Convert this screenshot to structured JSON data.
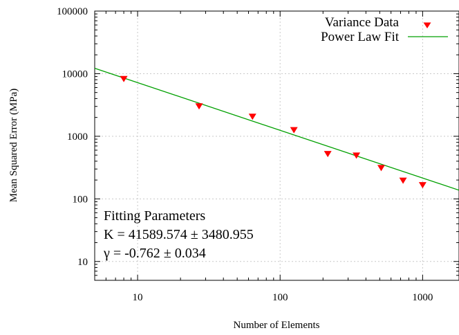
{
  "chart_data": {
    "type": "scatter",
    "x_scale": "log",
    "y_scale": "log",
    "xlim": [
      5,
      1800
    ],
    "ylim": [
      5,
      100000
    ],
    "xlabel": "Number of Elements",
    "ylabel": "Mean Squared Error (MPa)",
    "x_ticks": [
      {
        "value": 10,
        "label": "10"
      },
      {
        "value": 100,
        "label": "100"
      },
      {
        "value": 1000,
        "label": "1000"
      }
    ],
    "y_ticks": [
      {
        "value": 10,
        "label": "10"
      },
      {
        "value": 100,
        "label": "100"
      },
      {
        "value": 1000,
        "label": "1000"
      },
      {
        "value": 10000,
        "label": "10000"
      },
      {
        "value": 100000,
        "label": "100000"
      }
    ],
    "grid": true,
    "legend_position": "top-right",
    "series": [
      {
        "name": "Variance Data",
        "kind": "points",
        "marker": "triangle-down",
        "color": "#ff0000",
        "x": [
          8,
          27,
          64,
          125,
          216,
          343,
          512,
          729,
          1000
        ],
        "y": [
          8200,
          3000,
          2050,
          1250,
          520,
          490,
          310,
          195,
          165
        ]
      },
      {
        "name": "Power Law Fit",
        "kind": "line",
        "color": "#00a000",
        "K": 41589.574,
        "gamma": -0.762
      }
    ],
    "annotation": {
      "lines": [
        "Fitting Parameters",
        "K = 41589.574 ± 3480.955",
        "γ = -0.762 ± 0.034"
      ]
    }
  }
}
